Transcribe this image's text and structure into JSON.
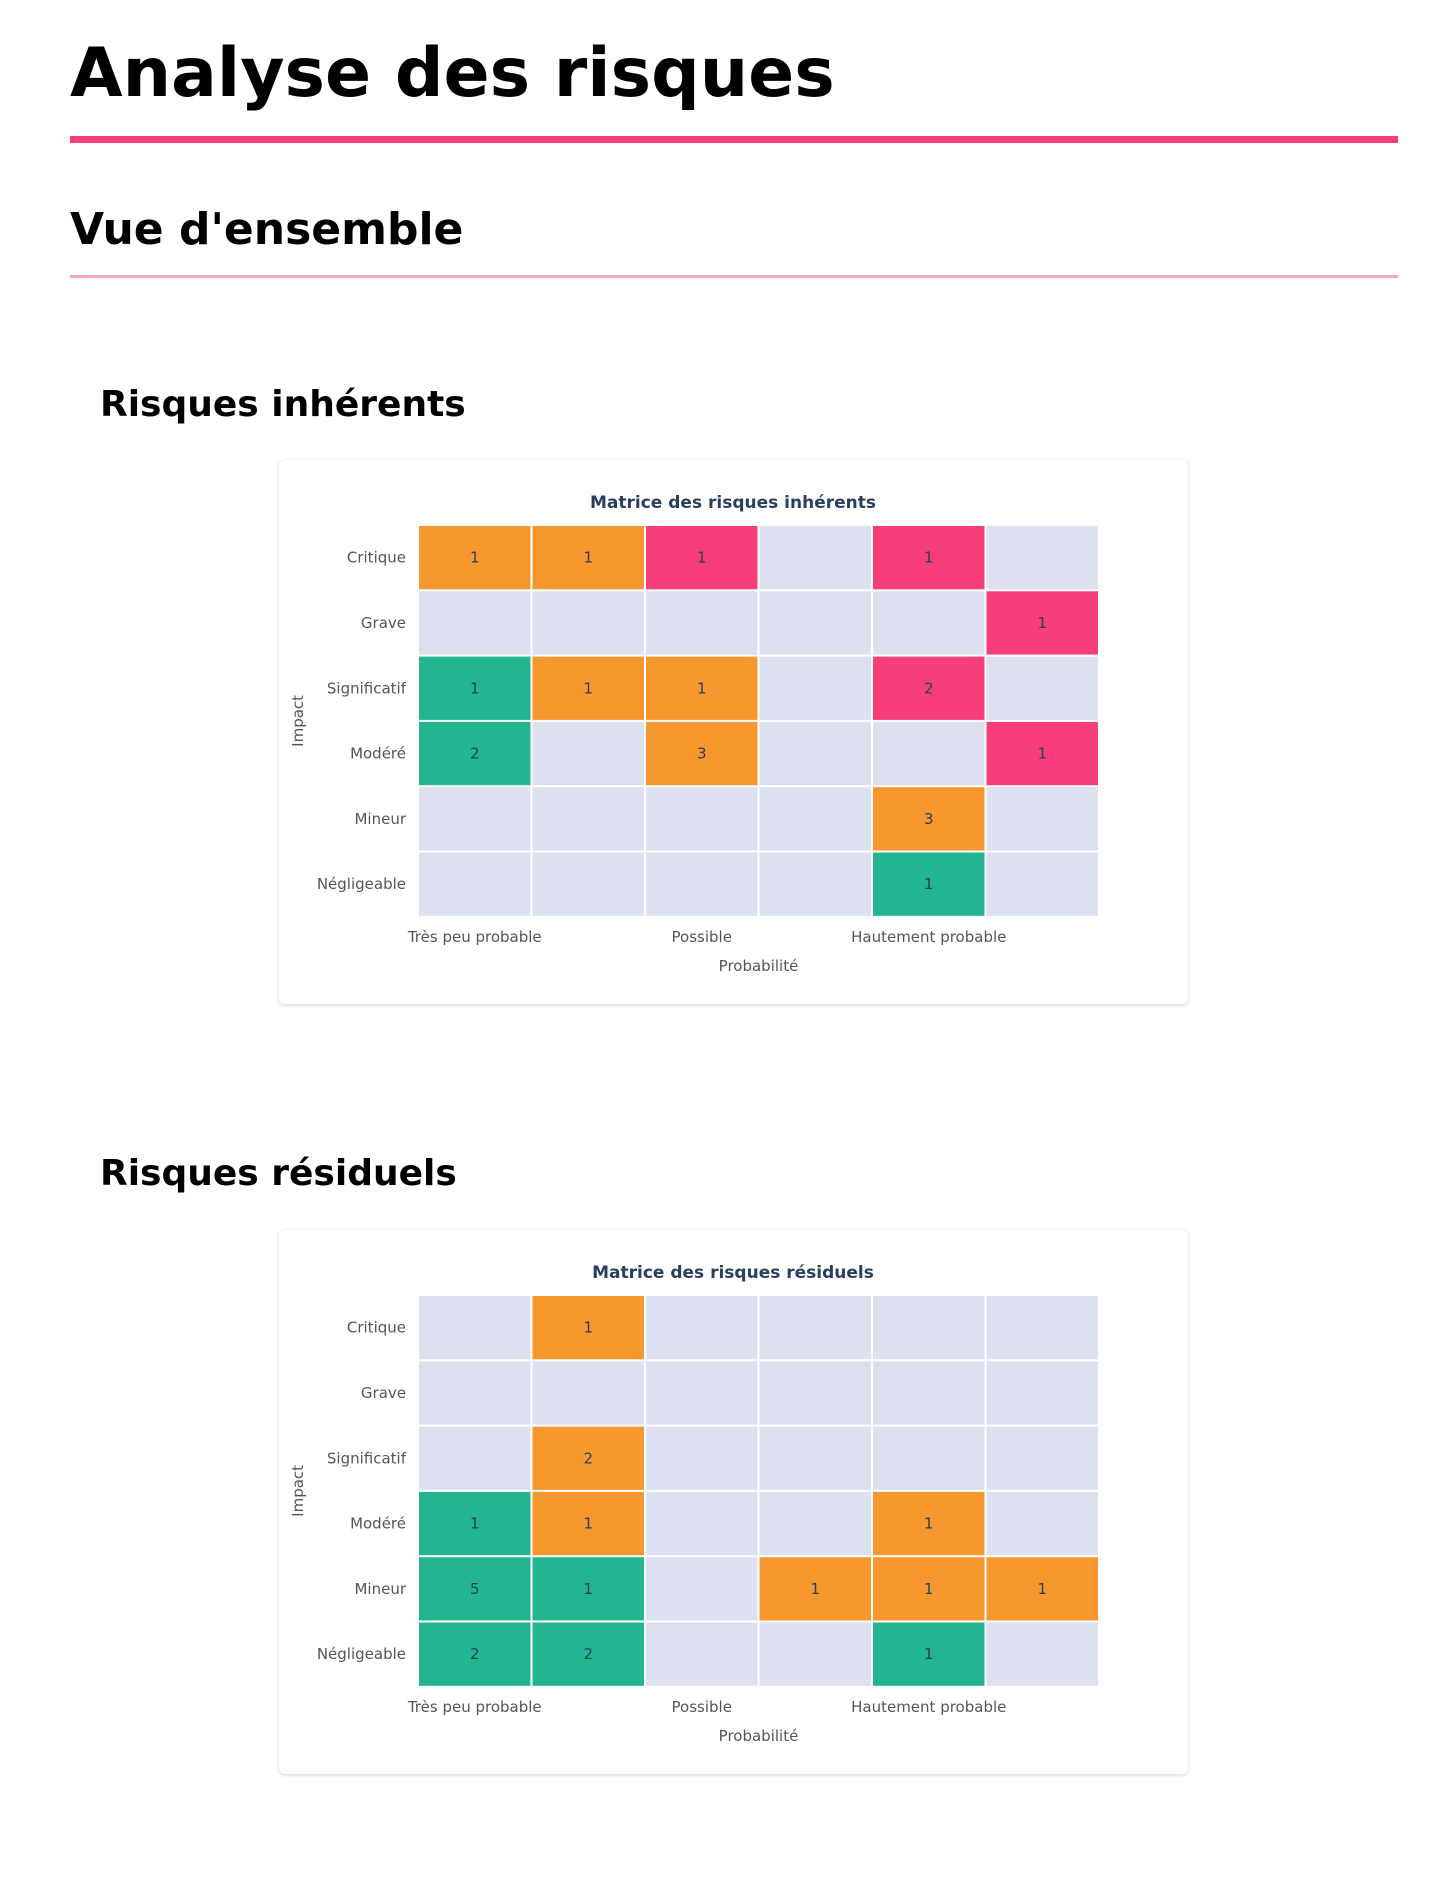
{
  "page": {
    "title": "Analyse des risques",
    "section_title": "Vue d'ensemble",
    "inherent_title": "Risques inhérents",
    "residual_title": "Risques résiduels"
  },
  "colors": {
    "accent": "#f63e7a",
    "accent_light": "#f4a6c4",
    "empty": "#dde1ef",
    "low": "#22b58f",
    "medium": "#f7982f",
    "high": "#f63e7a"
  },
  "chart_data": [
    {
      "type": "heatmap",
      "title": "Matrice des risques inhérents",
      "xlabel": "Probabilité",
      "ylabel": "Impact",
      "x_columns": 6,
      "x_tick_labels": [
        {
          "column": 0,
          "label": "Très peu probable"
        },
        {
          "column": 2,
          "label": "Possible"
        },
        {
          "column": 4,
          "label": "Hautement probable"
        }
      ],
      "y_categories": [
        "Critique",
        "Grave",
        "Significatif",
        "Modéré",
        "Mineur",
        "Négligeable"
      ],
      "values": [
        [
          1,
          1,
          1,
          null,
          1,
          null
        ],
        [
          null,
          null,
          null,
          null,
          null,
          1
        ],
        [
          1,
          1,
          1,
          null,
          2,
          null
        ],
        [
          2,
          null,
          3,
          null,
          null,
          1
        ],
        [
          null,
          null,
          null,
          null,
          3,
          null
        ],
        [
          null,
          null,
          null,
          null,
          1,
          null
        ]
      ],
      "levels": [
        [
          "medium",
          "medium",
          "high",
          null,
          "high",
          null
        ],
        [
          null,
          null,
          null,
          null,
          null,
          "high"
        ],
        [
          "low",
          "medium",
          "medium",
          null,
          "high",
          null
        ],
        [
          "low",
          null,
          "medium",
          null,
          null,
          "high"
        ],
        [
          null,
          null,
          null,
          null,
          "medium",
          null
        ],
        [
          null,
          null,
          null,
          null,
          "low",
          null
        ]
      ]
    },
    {
      "type": "heatmap",
      "title": "Matrice des risques résiduels",
      "xlabel": "Probabilité",
      "ylabel": "Impact",
      "x_columns": 6,
      "x_tick_labels": [
        {
          "column": 0,
          "label": "Très peu probable"
        },
        {
          "column": 2,
          "label": "Possible"
        },
        {
          "column": 4,
          "label": "Hautement probable"
        }
      ],
      "y_categories": [
        "Critique",
        "Grave",
        "Significatif",
        "Modéré",
        "Mineur",
        "Négligeable"
      ],
      "values": [
        [
          null,
          1,
          null,
          null,
          null,
          null
        ],
        [
          null,
          null,
          null,
          null,
          null,
          null
        ],
        [
          null,
          2,
          null,
          null,
          null,
          null
        ],
        [
          1,
          1,
          null,
          null,
          1,
          null
        ],
        [
          5,
          1,
          null,
          1,
          1,
          1
        ],
        [
          2,
          2,
          null,
          null,
          1,
          null
        ]
      ],
      "levels": [
        [
          null,
          "medium",
          null,
          null,
          null,
          null
        ],
        [
          null,
          null,
          null,
          null,
          null,
          null
        ],
        [
          null,
          "medium",
          null,
          null,
          null,
          null
        ],
        [
          "low",
          "medium",
          null,
          null,
          "medium",
          null
        ],
        [
          "low",
          "low",
          null,
          "medium",
          "medium",
          "medium"
        ],
        [
          "low",
          "low",
          null,
          null,
          "low",
          null
        ]
      ]
    }
  ]
}
